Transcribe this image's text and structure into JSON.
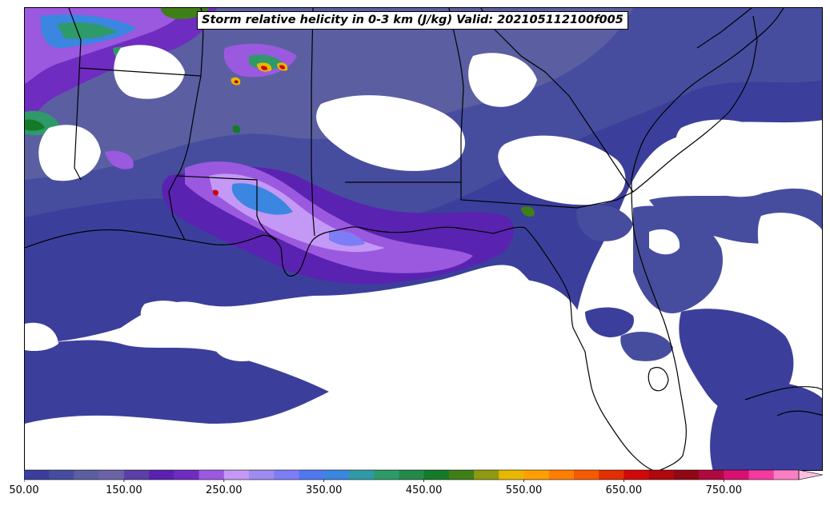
{
  "title": "Storm relative helicity in 0-3 km (J/kg) Valid: 202105112100f005",
  "colorbar": {
    "min": 50,
    "max": 825,
    "step": 25,
    "tick_labels": [
      "50.00",
      "150.00",
      "250.00",
      "350.00",
      "450.00",
      "550.00",
      "650.00",
      "750.00"
    ],
    "tick_values": [
      50,
      150,
      250,
      350,
      450,
      550,
      650,
      750
    ],
    "colors": [
      "#3b3f9b",
      "#474d9e",
      "#5b5fa1",
      "#6b63a6",
      "#5c3fa8",
      "#5a22b0",
      "#6f2cc0",
      "#9b59e0",
      "#c399f5",
      "#9f8cf0",
      "#7d7df5",
      "#4f78f0",
      "#3a86e0",
      "#2f9aa8",
      "#2e9a6a",
      "#238a4a",
      "#157a28",
      "#3f7f18",
      "#8f9a10",
      "#e8b800",
      "#ffa000",
      "#ff7e00",
      "#f55a00",
      "#e03000",
      "#d00808",
      "#b0080c",
      "#900814",
      "#b00840",
      "#d81070",
      "#f43aa0",
      "#fb7fc4"
    ],
    "extend_color": "#ffc0e0"
  }
}
